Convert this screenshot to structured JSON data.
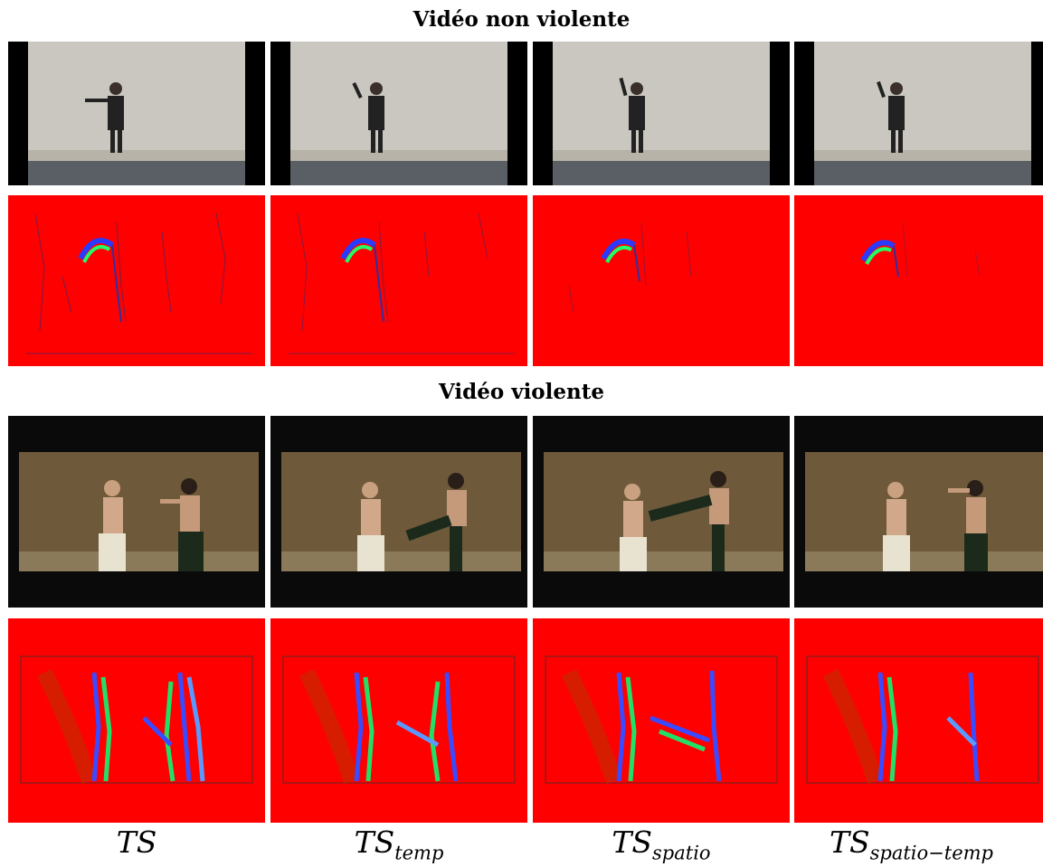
{
  "sections": [
    {
      "title": "Vidéo non violente"
    },
    {
      "title": "Vidéo violente"
    }
  ],
  "captions": [
    {
      "base": "TS",
      "sub": ""
    },
    {
      "base": "TS",
      "sub": "temp"
    },
    {
      "base": "TS",
      "sub": "spatio"
    },
    {
      "base": "TS",
      "sub": "spatio−temp"
    }
  ],
  "colors": {
    "flow_background": "#ff0000",
    "wall": "#c9c7bf",
    "letterbox": "#000000",
    "fight_backdrop": "#6e5a3a"
  }
}
